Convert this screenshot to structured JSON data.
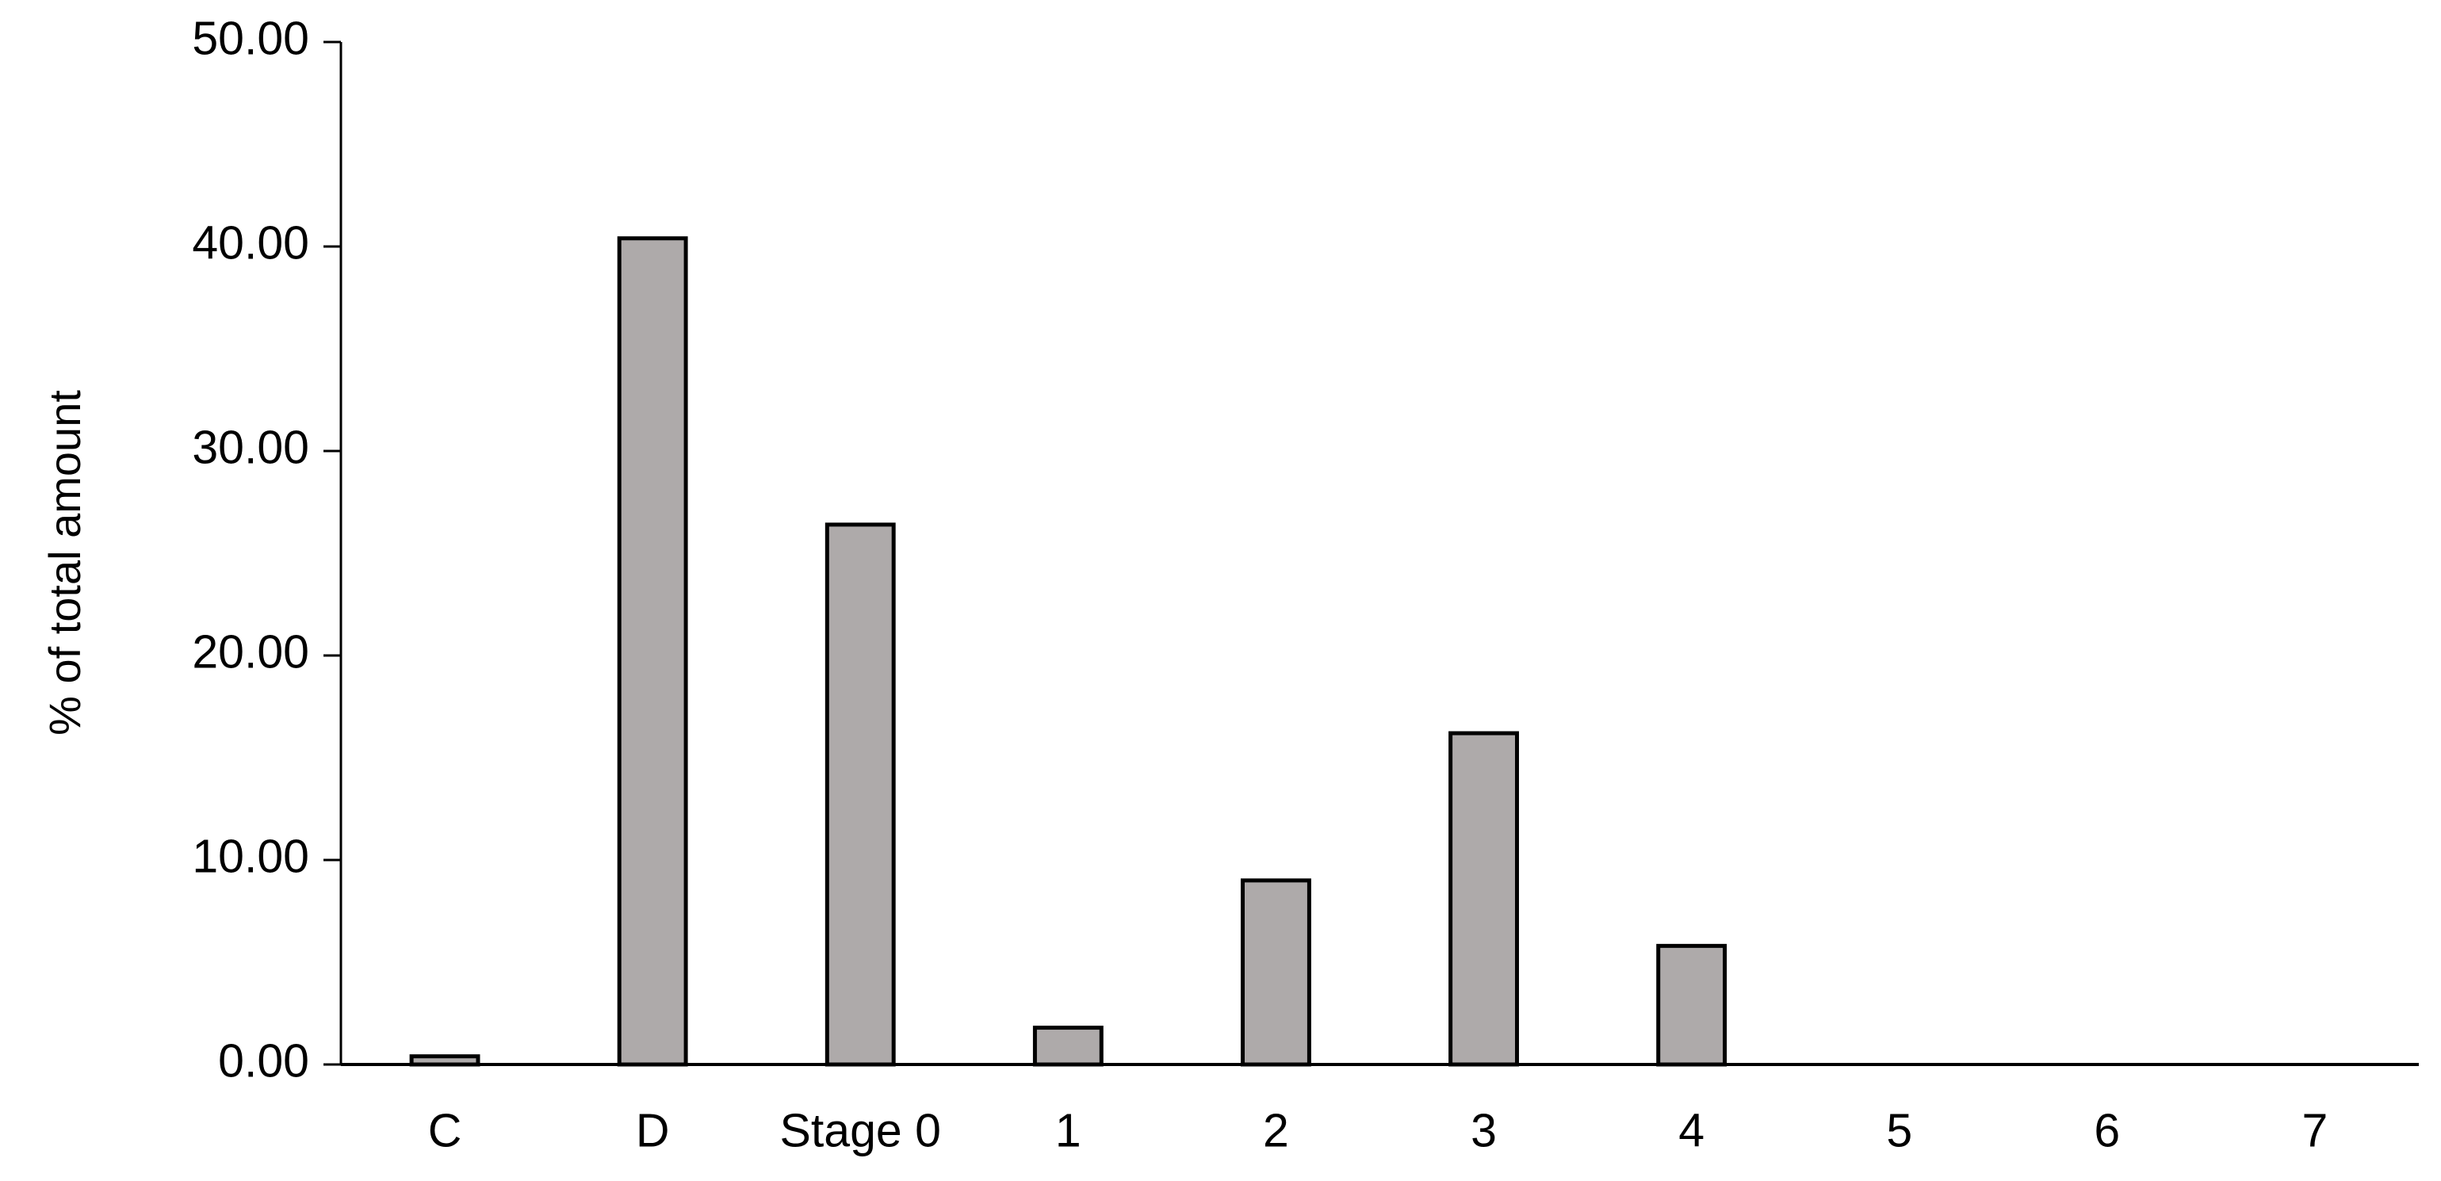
{
  "chart_data": {
    "type": "bar",
    "y_label": "% of total amount",
    "categories": [
      "C",
      "D",
      "Stage 0",
      "1",
      "2",
      "3",
      "4",
      "5",
      "6",
      "7"
    ],
    "values": [
      0.4,
      40.4,
      26.4,
      1.8,
      9.0,
      16.2,
      5.8,
      0,
      0,
      0
    ],
    "color": "#aeaaaa",
    "ylim": [
      0,
      50
    ],
    "yticks": [
      {
        "value": 0,
        "label": "0.00"
      },
      {
        "value": 10,
        "label": "10.00"
      },
      {
        "value": 20,
        "label": "20.00"
      },
      {
        "value": 30,
        "label": "30.00"
      },
      {
        "value": 40,
        "label": "40.00"
      },
      {
        "value": 50,
        "label": "50.00"
      }
    ],
    "grid": false
  }
}
